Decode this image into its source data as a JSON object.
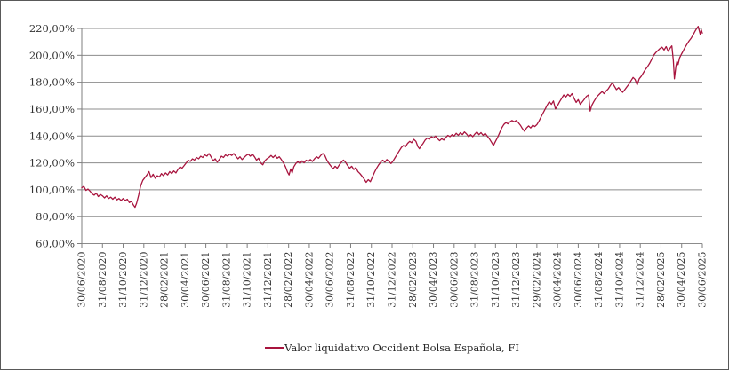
{
  "colors": {
    "series": "#A8143E",
    "gridline": "#8C8C8C",
    "axis": "#7F7F7F",
    "tick_text": "#333333",
    "legend_text": "#262626",
    "background": "#FFFFFF",
    "outer_border": "#595959"
  },
  "chart_data": {
    "type": "line",
    "title": "",
    "xlabel": "",
    "ylabel": "",
    "grid": "horizontal",
    "legend_position": "bottom-center",
    "ylim": [
      60,
      220
    ],
    "y_tick_step": 20,
    "y_tick_labels": [
      "220,00%",
      "200,00%",
      "180,00%",
      "160,00%",
      "140,00%",
      "120,00%",
      "100,00%",
      "80,00%",
      "60,00%"
    ],
    "x_unit": "months since first date shown",
    "xlim_months": [
      0,
      60
    ],
    "x_tick_interval_months": 2,
    "x_tick_labels": [
      "30/06/2020",
      "31/08/2020",
      "31/10/2020",
      "31/12/2020",
      "28/02/2021",
      "30/04/2021",
      "30/06/2021",
      "31/08/2021",
      "31/10/2021",
      "31/12/2021",
      "28/02/2022",
      "30/04/2022",
      "30/06/2022",
      "31/08/2022",
      "31/10/2022",
      "31/12/2022",
      "28/02/2023",
      "30/04/2023",
      "30/06/2023",
      "31/08/2023",
      "31/10/2023",
      "31/12/2023",
      "29/02/2024",
      "30/04/2024",
      "30/06/2024",
      "31/08/2024",
      "31/10/2024",
      "31/12/2024",
      "28/02/2025",
      "30/04/2025",
      "30/06/2025"
    ],
    "series": [
      {
        "name": "Valor liquidativo Occident Bolsa Española, FI",
        "color": "#A8143E",
        "points": [
          [
            0,
            101.5
          ],
          [
            0.2,
            102.5
          ],
          [
            0.4,
            99.5
          ],
          [
            0.6,
            100.5
          ],
          [
            0.8,
            99
          ],
          [
            1,
            97
          ],
          [
            1.2,
            96
          ],
          [
            1.4,
            97.5
          ],
          [
            1.6,
            95
          ],
          [
            1.8,
            96.5
          ],
          [
            2,
            95.5
          ],
          [
            2.2,
            94
          ],
          [
            2.4,
            95.5
          ],
          [
            2.6,
            93.5
          ],
          [
            2.8,
            94.5
          ],
          [
            3,
            93
          ],
          [
            3.2,
            94.5
          ],
          [
            3.4,
            92.5
          ],
          [
            3.6,
            93.5
          ],
          [
            3.8,
            92
          ],
          [
            4,
            93.5
          ],
          [
            4.2,
            92
          ],
          [
            4.4,
            93
          ],
          [
            4.6,
            90.5
          ],
          [
            4.8,
            91.5
          ],
          [
            5,
            88.5
          ],
          [
            5.15,
            87
          ],
          [
            5.3,
            90
          ],
          [
            5.5,
            96
          ],
          [
            5.7,
            103
          ],
          [
            5.9,
            107
          ],
          [
            6.1,
            109
          ],
          [
            6.3,
            111
          ],
          [
            6.5,
            113.5
          ],
          [
            6.7,
            109
          ],
          [
            6.9,
            111.5
          ],
          [
            7.1,
            108.5
          ],
          [
            7.3,
            110.5
          ],
          [
            7.5,
            109.5
          ],
          [
            7.7,
            112
          ],
          [
            7.9,
            110.5
          ],
          [
            8.1,
            112.5
          ],
          [
            8.3,
            111
          ],
          [
            8.5,
            113.5
          ],
          [
            8.7,
            112
          ],
          [
            8.9,
            114
          ],
          [
            9.1,
            112.5
          ],
          [
            9.3,
            115
          ],
          [
            9.5,
            117
          ],
          [
            9.7,
            116
          ],
          [
            9.9,
            118
          ],
          [
            10.1,
            120
          ],
          [
            10.3,
            122
          ],
          [
            10.5,
            121
          ],
          [
            10.7,
            123
          ],
          [
            10.9,
            122
          ],
          [
            11.1,
            124
          ],
          [
            11.3,
            123
          ],
          [
            11.5,
            125
          ],
          [
            11.7,
            124
          ],
          [
            11.9,
            126
          ],
          [
            12.1,
            125
          ],
          [
            12.3,
            127
          ],
          [
            12.5,
            124.5
          ],
          [
            12.7,
            121.5
          ],
          [
            12.9,
            123
          ],
          [
            13.1,
            120.5
          ],
          [
            13.3,
            122.5
          ],
          [
            13.5,
            125
          ],
          [
            13.7,
            124
          ],
          [
            13.9,
            126
          ],
          [
            14.1,
            125
          ],
          [
            14.3,
            126.5
          ],
          [
            14.5,
            125.5
          ],
          [
            14.7,
            127
          ],
          [
            14.9,
            125
          ],
          [
            15.1,
            123
          ],
          [
            15.3,
            124.5
          ],
          [
            15.5,
            122.5
          ],
          [
            15.7,
            124
          ],
          [
            15.9,
            125.5
          ],
          [
            16.1,
            126.5
          ],
          [
            16.3,
            125
          ],
          [
            16.5,
            126.5
          ],
          [
            16.7,
            124.5
          ],
          [
            16.9,
            122
          ],
          [
            17.1,
            123.5
          ],
          [
            17.3,
            120
          ],
          [
            17.5,
            118.5
          ],
          [
            17.7,
            121.5
          ],
          [
            17.9,
            123
          ],
          [
            18.1,
            124
          ],
          [
            18.3,
            125.5
          ],
          [
            18.5,
            124
          ],
          [
            18.7,
            125.5
          ],
          [
            18.9,
            123.5
          ],
          [
            19.1,
            124.5
          ],
          [
            19.3,
            122.5
          ],
          [
            19.5,
            120
          ],
          [
            19.7,
            117
          ],
          [
            19.9,
            113
          ],
          [
            20.05,
            111
          ],
          [
            20.2,
            115.5
          ],
          [
            20.35,
            112.5
          ],
          [
            20.5,
            117
          ],
          [
            20.7,
            119.5
          ],
          [
            20.9,
            121
          ],
          [
            21.1,
            119.5
          ],
          [
            21.3,
            121.5
          ],
          [
            21.5,
            120
          ],
          [
            21.7,
            122
          ],
          [
            21.9,
            121
          ],
          [
            22.1,
            122.5
          ],
          [
            22.3,
            121
          ],
          [
            22.5,
            123
          ],
          [
            22.7,
            124.5
          ],
          [
            22.9,
            123.5
          ],
          [
            23.1,
            125.5
          ],
          [
            23.3,
            127
          ],
          [
            23.5,
            125.5
          ],
          [
            23.7,
            122
          ],
          [
            23.9,
            119.5
          ],
          [
            24.1,
            117.5
          ],
          [
            24.3,
            115.5
          ],
          [
            24.5,
            117.5
          ],
          [
            24.7,
            116
          ],
          [
            24.9,
            118.5
          ],
          [
            25.1,
            120.5
          ],
          [
            25.3,
            122
          ],
          [
            25.5,
            120.5
          ],
          [
            25.7,
            118
          ],
          [
            25.9,
            116
          ],
          [
            26.1,
            117.5
          ],
          [
            26.3,
            115
          ],
          [
            26.5,
            116.5
          ],
          [
            26.7,
            113.5
          ],
          [
            26.9,
            112
          ],
          [
            27.1,
            110
          ],
          [
            27.3,
            108
          ],
          [
            27.5,
            105.5
          ],
          [
            27.7,
            107.5
          ],
          [
            27.9,
            106
          ],
          [
            28.1,
            109.5
          ],
          [
            28.3,
            113
          ],
          [
            28.5,
            116
          ],
          [
            28.7,
            118.5
          ],
          [
            28.9,
            120.5
          ],
          [
            29.1,
            122
          ],
          [
            29.3,
            120.5
          ],
          [
            29.5,
            122.5
          ],
          [
            29.7,
            121
          ],
          [
            29.9,
            119.5
          ],
          [
            30.1,
            121.5
          ],
          [
            30.3,
            124
          ],
          [
            30.5,
            126.5
          ],
          [
            30.7,
            129
          ],
          [
            30.9,
            131.5
          ],
          [
            31.1,
            133
          ],
          [
            31.3,
            132
          ],
          [
            31.5,
            134.5
          ],
          [
            31.7,
            136
          ],
          [
            31.9,
            135
          ],
          [
            32.1,
            137.5
          ],
          [
            32.3,
            136
          ],
          [
            32.5,
            132
          ],
          [
            32.65,
            130.5
          ],
          [
            32.8,
            132.5
          ],
          [
            33,
            134.5
          ],
          [
            33.2,
            137
          ],
          [
            33.4,
            138.5
          ],
          [
            33.6,
            137.5
          ],
          [
            33.8,
            139.5
          ],
          [
            34,
            138.5
          ],
          [
            34.2,
            140
          ],
          [
            34.4,
            138
          ],
          [
            34.6,
            136.5
          ],
          [
            34.8,
            138
          ],
          [
            35,
            137
          ],
          [
            35.2,
            139
          ],
          [
            35.4,
            140.5
          ],
          [
            35.6,
            139.5
          ],
          [
            35.8,
            141
          ],
          [
            36,
            140
          ],
          [
            36.2,
            142
          ],
          [
            36.4,
            140.5
          ],
          [
            36.6,
            142.5
          ],
          [
            36.8,
            141
          ],
          [
            37,
            143
          ],
          [
            37.2,
            141.5
          ],
          [
            37.4,
            139.5
          ],
          [
            37.6,
            141
          ],
          [
            37.8,
            139.5
          ],
          [
            38,
            141.5
          ],
          [
            38.2,
            143
          ],
          [
            38.4,
            141
          ],
          [
            38.6,
            142.5
          ],
          [
            38.8,
            140.5
          ],
          [
            39,
            142
          ],
          [
            39.2,
            140
          ],
          [
            39.4,
            138
          ],
          [
            39.6,
            135.5
          ],
          [
            39.8,
            133
          ],
          [
            40,
            136
          ],
          [
            40.2,
            139
          ],
          [
            40.4,
            142.5
          ],
          [
            40.6,
            146
          ],
          [
            40.8,
            148.5
          ],
          [
            41,
            150
          ],
          [
            41.2,
            149
          ],
          [
            41.4,
            150.5
          ],
          [
            41.6,
            151.5
          ],
          [
            41.8,
            150.5
          ],
          [
            42,
            151.5
          ],
          [
            42.2,
            150
          ],
          [
            42.4,
            148
          ],
          [
            42.6,
            145.5
          ],
          [
            42.8,
            143.5
          ],
          [
            43,
            146
          ],
          [
            43.2,
            147.5
          ],
          [
            43.4,
            146
          ],
          [
            43.6,
            148
          ],
          [
            43.8,
            147
          ],
          [
            44,
            148.5
          ],
          [
            44.2,
            151
          ],
          [
            44.4,
            154
          ],
          [
            44.6,
            157
          ],
          [
            44.8,
            160
          ],
          [
            45,
            163
          ],
          [
            45.2,
            165.5
          ],
          [
            45.4,
            163.5
          ],
          [
            45.6,
            166
          ],
          [
            45.8,
            160
          ],
          [
            46,
            162.5
          ],
          [
            46.2,
            165.5
          ],
          [
            46.4,
            168
          ],
          [
            46.6,
            170.5
          ],
          [
            46.8,
            169
          ],
          [
            47,
            171
          ],
          [
            47.2,
            169.5
          ],
          [
            47.4,
            171.5
          ],
          [
            47.6,
            168
          ],
          [
            47.8,
            165
          ],
          [
            48,
            167
          ],
          [
            48.2,
            163.5
          ],
          [
            48.4,
            165.5
          ],
          [
            48.6,
            167.5
          ],
          [
            48.8,
            169.5
          ],
          [
            49,
            170.5
          ],
          [
            49.15,
            158.5
          ],
          [
            49.3,
            162.5
          ],
          [
            49.5,
            165.5
          ],
          [
            49.7,
            168
          ],
          [
            49.9,
            170
          ],
          [
            50.1,
            171.5
          ],
          [
            50.3,
            173
          ],
          [
            50.5,
            171.5
          ],
          [
            50.7,
            173.5
          ],
          [
            50.9,
            175
          ],
          [
            51.1,
            177.5
          ],
          [
            51.3,
            179.5
          ],
          [
            51.5,
            177
          ],
          [
            51.7,
            174.5
          ],
          [
            51.9,
            176
          ],
          [
            52.1,
            174
          ],
          [
            52.3,
            172.5
          ],
          [
            52.5,
            174.5
          ],
          [
            52.7,
            176.5
          ],
          [
            52.9,
            178.5
          ],
          [
            53.1,
            181
          ],
          [
            53.3,
            183.5
          ],
          [
            53.5,
            182
          ],
          [
            53.7,
            178
          ],
          [
            53.9,
            182.5
          ],
          [
            54.1,
            184.5
          ],
          [
            54.3,
            187
          ],
          [
            54.5,
            189.5
          ],
          [
            54.7,
            191.5
          ],
          [
            54.9,
            194
          ],
          [
            55.1,
            197
          ],
          [
            55.3,
            200
          ],
          [
            55.5,
            202
          ],
          [
            55.7,
            203.5
          ],
          [
            55.9,
            205
          ],
          [
            56.1,
            206
          ],
          [
            56.3,
            204
          ],
          [
            56.5,
            206.5
          ],
          [
            56.7,
            203
          ],
          [
            56.9,
            205.5
          ],
          [
            57.05,
            207
          ],
          [
            57.2,
            196
          ],
          [
            57.3,
            182.5
          ],
          [
            57.45,
            192
          ],
          [
            57.55,
            195.5
          ],
          [
            57.65,
            193
          ],
          [
            57.8,
            198
          ],
          [
            57.95,
            200.5
          ],
          [
            58.1,
            202.5
          ],
          [
            58.3,
            205.5
          ],
          [
            58.5,
            208
          ],
          [
            58.7,
            210.5
          ],
          [
            58.9,
            212.5
          ],
          [
            59.1,
            215
          ],
          [
            59.3,
            218
          ],
          [
            59.5,
            220.5
          ],
          [
            59.6,
            221.5
          ],
          [
            59.7,
            218.5
          ],
          [
            59.8,
            215.5
          ],
          [
            59.9,
            219
          ],
          [
            60,
            216.5
          ]
        ]
      }
    ]
  }
}
